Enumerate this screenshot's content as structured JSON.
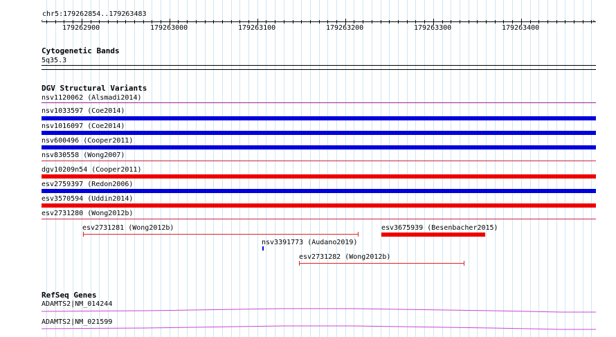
{
  "ruler": {
    "location": "chr5:179262854..179263483",
    "ticks": [
      "179262900",
      "179263000",
      "179263100",
      "179263200",
      "179263300",
      "179263400"
    ]
  },
  "cytobands": {
    "title": "Cytogenetic Bands",
    "band": "5q35.3"
  },
  "dgv": {
    "title": "DGV Structural Variants",
    "rows": [
      {
        "label": "nsv1120062 (Alsmadi2014)",
        "color": "#a0208c",
        "style": "line"
      },
      {
        "label": "nsv1033597 (Coe2014)",
        "color": "#0000dd",
        "style": "bar"
      },
      {
        "label": "nsv1016097 (Coe2014)",
        "color": "#0000dd",
        "style": "bar"
      },
      {
        "label": "nsv600496 (Cooper2011)",
        "color": "#0000dd",
        "style": "bar"
      },
      {
        "label": "nsv830558 (Wong2007)",
        "color": "#cc2244",
        "style": "line"
      },
      {
        "label": "dgv10209n54 (Cooper2011)",
        "color": "#ee0000",
        "style": "bar"
      },
      {
        "label": "esv2759397 (Redon2006)",
        "color": "#0000dd",
        "style": "bar"
      },
      {
        "label": "esv3570594 (Uddin2014)",
        "color": "#ee0000",
        "style": "bar"
      },
      {
        "label": "esv2731280 (Wong2012b)",
        "color": "#cc2244",
        "style": "line"
      }
    ],
    "features": [
      {
        "label": "esv2731281 (Wong2012b)",
        "color": "#dd2222"
      },
      {
        "label": "esv3675939 (Besenbacher2015)",
        "color": "#ee0000"
      },
      {
        "label": "nsv3391773 (Audano2019)",
        "color": "#0000dd"
      },
      {
        "label": "esv2731282 (Wong2012b)",
        "color": "#dd2222"
      }
    ]
  },
  "refseq": {
    "title": "RefSeq Genes",
    "genes": [
      {
        "label": "ADAMTS2|NM_014244",
        "color": "#cc44cc"
      },
      {
        "label": "ADAMTS2|NM_021599",
        "color": "#cc44cc"
      }
    ]
  }
}
